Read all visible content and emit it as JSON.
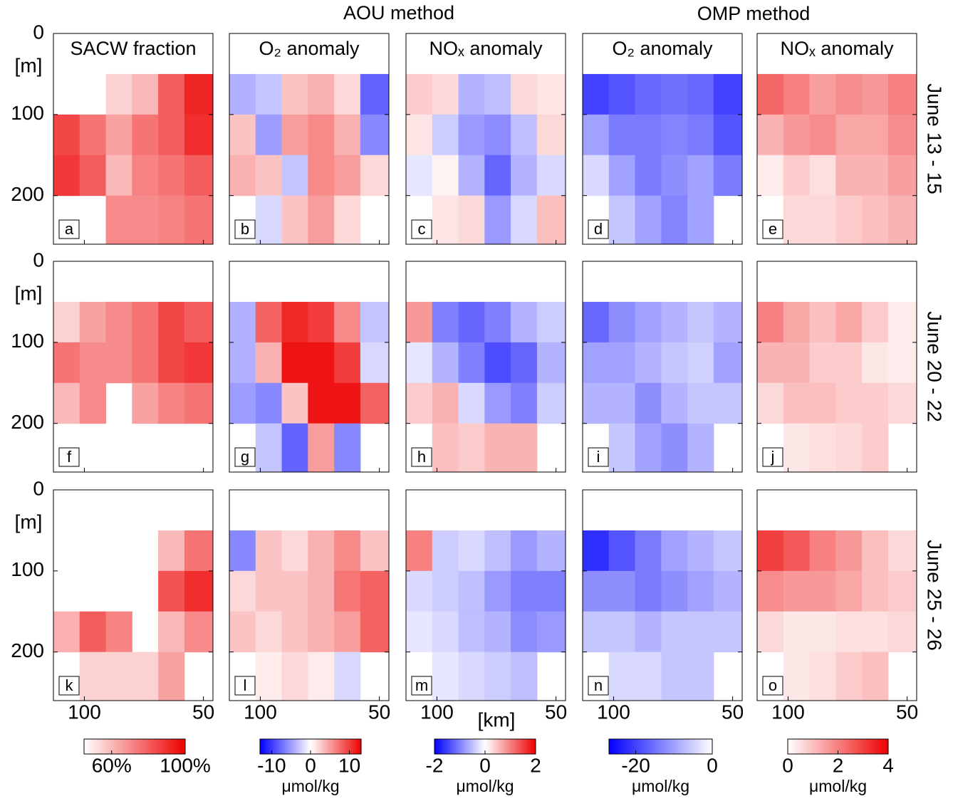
{
  "headers": [
    "AOU method",
    "OMP method"
  ],
  "row_labels": [
    "June 13 - 15",
    "June 20 - 22",
    "June 25 - 26"
  ],
  "y_axis_label": "[m]",
  "x_axis_label": "[km]",
  "axes": {
    "xlim": [
      113,
      46
    ],
    "xticks": [
      100,
      50
    ],
    "ylim": [
      0,
      260
    ],
    "yticks": [
      0,
      100,
      200
    ],
    "x_bins": [
      113,
      102,
      91,
      80,
      69,
      58,
      46
    ],
    "depth_bins": [
      50,
      100,
      150,
      200,
      260
    ]
  },
  "colorbars": [
    {
      "clim": [
        45,
        100
      ],
      "colors": [
        "#ffffff",
        "#ee0000"
      ],
      "ticks": [
        {
          "value": 60,
          "label": "60%"
        },
        {
          "value": 100,
          "label": "100%"
        }
      ]
    },
    {
      "clim": [
        -13,
        13
      ],
      "colors": [
        "#0000ff",
        "#ffffff",
        "#ee0000"
      ],
      "ticks": [
        -10,
        0,
        10
      ],
      "unit": "μmol/kg"
    },
    {
      "clim": [
        -2,
        2
      ],
      "colors": [
        "#0000ff",
        "#ffffff",
        "#ee0000"
      ],
      "ticks": [
        -2,
        0,
        2
      ],
      "unit": "μmol/kg"
    },
    {
      "clim": [
        -27,
        0
      ],
      "colors": [
        "#0000ff",
        "#ffffff"
      ],
      "ticks": [
        -20,
        0
      ],
      "unit": "μmol/kg"
    },
    {
      "clim": [
        0,
        4
      ],
      "colors": [
        "#ffffff",
        "#ee0000"
      ],
      "ticks": [
        0,
        2,
        4
      ],
      "unit": "μmol/kg"
    }
  ],
  "chart_data": [
    {
      "type": "heatmap",
      "title": "SACW fraction",
      "label": "a",
      "values": [
        [
          null,
          null,
          55,
          60,
          80,
          92
        ],
        [
          85,
          75,
          65,
          75,
          80,
          90
        ],
        [
          88,
          80,
          60,
          72,
          75,
          80
        ],
        [
          null,
          null,
          70,
          70,
          72,
          75
        ]
      ]
    },
    {
      "type": "heatmap",
      "title": "O₂ anomaly",
      "label": "b",
      "values": [
        [
          -4,
          -3,
          3,
          4,
          2,
          -8
        ],
        [
          3,
          -5,
          5,
          6,
          4,
          -6
        ],
        [
          4,
          3,
          -3,
          6,
          5,
          2
        ],
        [
          null,
          -2,
          3,
          5,
          2,
          null
        ]
      ]
    },
    {
      "type": "heatmap",
      "title": "NOₓ anomaly",
      "label": "c",
      "values": [
        [
          0.4,
          0.3,
          -0.6,
          -0.5,
          0.3,
          0.2
        ],
        [
          0.2,
          -0.4,
          -0.8,
          -0.9,
          -0.5,
          0.3
        ],
        [
          -0.2,
          0.1,
          -0.6,
          -1.2,
          -0.6,
          -0.3
        ],
        [
          null,
          0.2,
          0.3,
          -0.8,
          -0.3,
          0.5
        ]
      ]
    },
    {
      "type": "heatmap",
      "title": "O₂ anomaly",
      "label": "d",
      "values": [
        [
          -20,
          -18,
          -16,
          -15,
          -16,
          -20
        ],
        [
          -10,
          -14,
          -14,
          -13,
          -14,
          -18
        ],
        [
          -4,
          -10,
          -14,
          -12,
          -10,
          -14
        ],
        [
          null,
          -6,
          -10,
          -13,
          -10,
          null
        ]
      ]
    },
    {
      "type": "heatmap",
      "title": "NOₓ anomaly",
      "label": "e",
      "values": [
        [
          2.4,
          2.0,
          1.5,
          1.8,
          1.6,
          2.0
        ],
        [
          1.2,
          1.6,
          1.8,
          1.4,
          1.4,
          1.8
        ],
        [
          0.3,
          0.8,
          0.5,
          1.2,
          1.2,
          1.5
        ],
        [
          null,
          0.6,
          0.6,
          0.8,
          1.0,
          1.2
        ]
      ]
    },
    {
      "type": "heatmap",
      "label": "f",
      "values": [
        [
          55,
          65,
          70,
          75,
          85,
          80
        ],
        [
          75,
          70,
          70,
          75,
          85,
          88
        ],
        [
          60,
          70,
          null,
          65,
          72,
          75
        ],
        [
          null,
          null,
          null,
          null,
          null,
          null
        ]
      ]
    },
    {
      "type": "heatmap",
      "label": "g",
      "values": [
        [
          -4,
          8,
          11,
          10,
          6,
          -3
        ],
        [
          -4,
          4,
          12,
          12,
          10,
          -2
        ],
        [
          -5,
          -6,
          3,
          12,
          12,
          8
        ],
        [
          null,
          -3,
          -8,
          5,
          -6,
          null
        ]
      ]
    },
    {
      "type": "heatmap",
      "label": "h",
      "values": [
        [
          0.8,
          -1.0,
          -1.2,
          -1.0,
          -0.6,
          -0.4
        ],
        [
          -0.2,
          -0.6,
          -1.0,
          -1.4,
          -1.2,
          -0.6
        ],
        [
          0.4,
          0.6,
          -0.3,
          -0.8,
          -1.0,
          -0.4
        ],
        [
          null,
          0.5,
          0.4,
          0.6,
          0.6,
          null
        ]
      ]
    },
    {
      "type": "heatmap",
      "label": "i",
      "values": [
        [
          -16,
          -12,
          -10,
          -8,
          -6,
          -8
        ],
        [
          -10,
          -10,
          -8,
          -6,
          -5,
          -10
        ],
        [
          -8,
          -8,
          -12,
          -8,
          -6,
          -6
        ],
        [
          null,
          -6,
          -10,
          -12,
          -8,
          null
        ]
      ]
    },
    {
      "type": "heatmap",
      "label": "j",
      "values": [
        [
          2.0,
          1.4,
          1.0,
          1.4,
          0.8,
          0.3
        ],
        [
          1.2,
          1.2,
          0.8,
          0.8,
          0.4,
          0.3
        ],
        [
          0.6,
          1.0,
          1.0,
          0.8,
          0.8,
          0.6
        ],
        [
          null,
          0.4,
          0.5,
          0.6,
          0.8,
          null
        ]
      ]
    },
    {
      "type": "heatmap",
      "label": "k",
      "values": [
        [
          null,
          null,
          null,
          null,
          60,
          75
        ],
        [
          null,
          null,
          null,
          null,
          82,
          90
        ],
        [
          62,
          80,
          72,
          null,
          60,
          70
        ],
        [
          null,
          55,
          55,
          55,
          65,
          null
        ]
      ]
    },
    {
      "type": "heatmap",
      "label": "l",
      "values": [
        [
          -6,
          3,
          2,
          4,
          6,
          3
        ],
        [
          2,
          3,
          3,
          4,
          7,
          8
        ],
        [
          3,
          2,
          3,
          4,
          5,
          8
        ],
        [
          null,
          1,
          2,
          1,
          -2,
          null
        ]
      ]
    },
    {
      "type": "heatmap",
      "label": "m",
      "values": [
        [
          1.0,
          -0.4,
          -0.3,
          -0.5,
          -0.8,
          -0.6
        ],
        [
          -0.3,
          -0.4,
          -0.5,
          -0.8,
          -1.0,
          -1.0
        ],
        [
          -0.2,
          -0.3,
          -0.5,
          -0.6,
          -0.9,
          -0.8
        ],
        [
          null,
          -0.2,
          -0.3,
          -0.4,
          -0.5,
          null
        ]
      ]
    },
    {
      "type": "heatmap",
      "label": "n",
      "values": [
        [
          -22,
          -18,
          -14,
          -10,
          -8,
          -6
        ],
        [
          -12,
          -12,
          -14,
          -12,
          -10,
          -8
        ],
        [
          -6,
          -6,
          -8,
          -6,
          -6,
          -6
        ],
        [
          null,
          -4,
          -4,
          -6,
          -6,
          null
        ]
      ]
    },
    {
      "type": "heatmap",
      "label": "o",
      "values": [
        [
          3.0,
          2.6,
          2.0,
          1.6,
          1.0,
          0.6
        ],
        [
          1.8,
          1.6,
          1.6,
          1.4,
          1.0,
          0.8
        ],
        [
          0.6,
          0.4,
          0.4,
          0.5,
          0.5,
          0.6
        ],
        [
          null,
          0.4,
          0.5,
          0.8,
          1.0,
          null
        ]
      ]
    }
  ]
}
